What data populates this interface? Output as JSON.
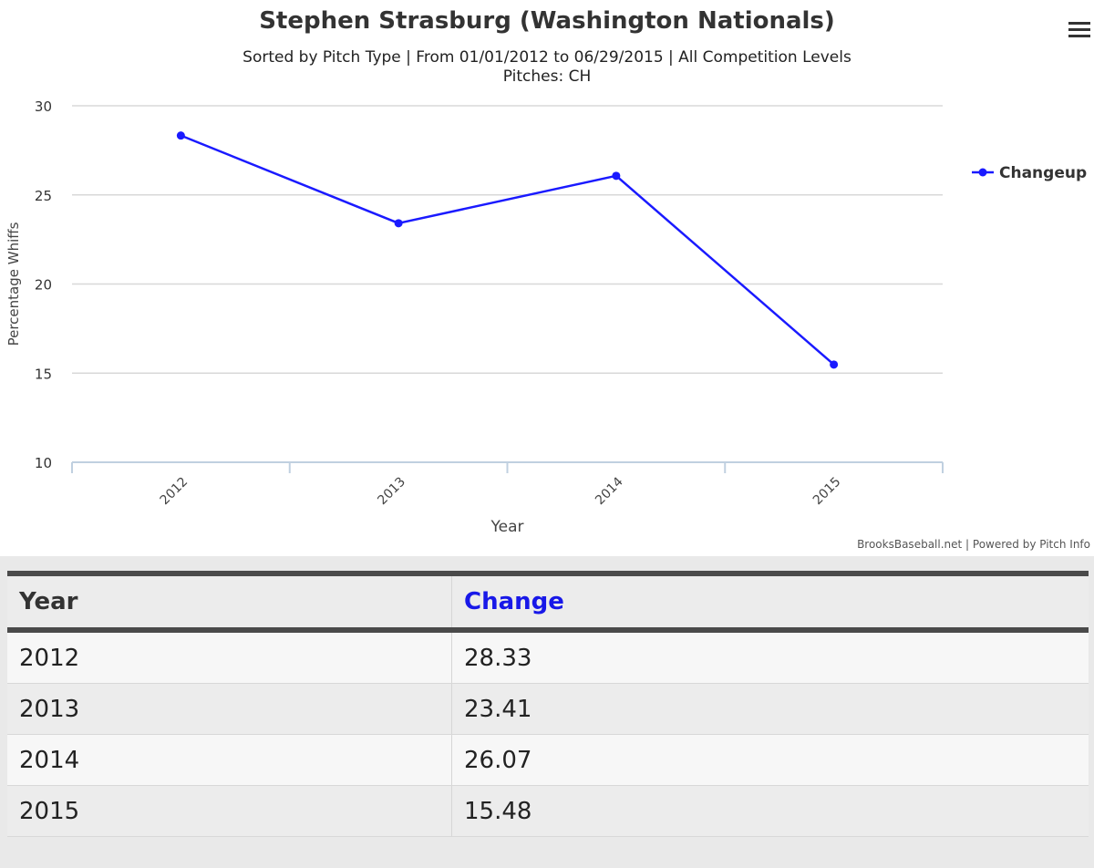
{
  "chart_data": {
    "type": "line",
    "title": "Stephen Strasburg (Washington Nationals)",
    "subtitle_line1": "Sorted by Pitch Type | From 01/01/2012 to 06/29/2015 | All Competition Levels",
    "subtitle_line2": "Pitches: CH",
    "categories": [
      "2012",
      "2013",
      "2014",
      "2015"
    ],
    "series": [
      {
        "name": "Changeup",
        "values": [
          28.33,
          23.41,
          26.07,
          15.48
        ],
        "color": "#1a1aff"
      }
    ],
    "xlabel": "Year",
    "ylabel": "Percentage Whiffs",
    "ylim": [
      10,
      30
    ],
    "yticks": [
      "10",
      "15",
      "20",
      "25",
      "30"
    ],
    "grid": true,
    "legend_position": "right",
    "credits": "BrooksBaseball.net | Powered by Pitch Info"
  },
  "table": {
    "headers": {
      "year": "Year",
      "change": "Change"
    },
    "rows": [
      {
        "year": "2012",
        "change": "28.33"
      },
      {
        "year": "2013",
        "change": "23.41"
      },
      {
        "year": "2014",
        "change": "26.07"
      },
      {
        "year": "2015",
        "change": "15.48"
      }
    ]
  },
  "colors": {
    "series": "#1a1aff",
    "header_link": "#1818e8",
    "grid": "#d8d8d8",
    "x_axis": "#c0d0e0"
  },
  "icons": {
    "menu": "hamburger-menu-icon"
  }
}
